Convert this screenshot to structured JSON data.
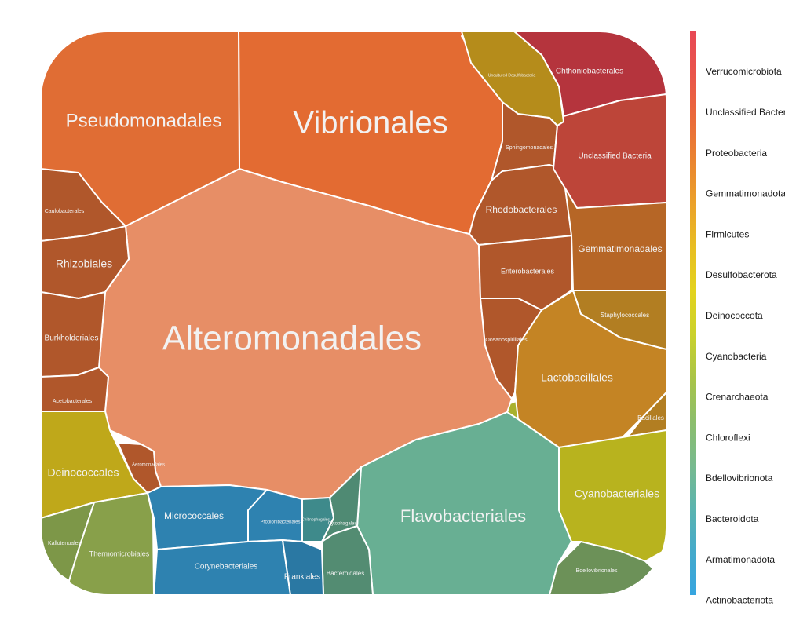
{
  "chart_data": {
    "type": "voronoi-treemap",
    "legend": {
      "placement": "right",
      "entries": [
        {
          "name": "Verrucomicrobiota",
          "color": "#E84855"
        },
        {
          "name": "Unclassified Bacteria",
          "color": "#E9554A"
        },
        {
          "name": "Proteobacteria",
          "color": "#EA6A3A"
        },
        {
          "name": "Gemmatimonadota",
          "color": "#EA8530"
        },
        {
          "name": "Firmicutes",
          "color": "#EBA22A"
        },
        {
          "name": "Desulfobacterota",
          "color": "#E8BE22"
        },
        {
          "name": "Deinococcota",
          "color": "#E3D31E"
        },
        {
          "name": "Cyanobacteria",
          "color": "#CAD12C"
        },
        {
          "name": "Crenarchaeota",
          "color": "#A9C447"
        },
        {
          "name": "Chloroflexi",
          "color": "#8CBE6C"
        },
        {
          "name": "Bdellovibrionota",
          "color": "#78BA8E"
        },
        {
          "name": "Bacteroidota",
          "color": "#5BB4AE"
        },
        {
          "name": "Armatimonadota",
          "color": "#45AACB"
        },
        {
          "name": "Actinobacteriota",
          "color": "#36A5E0"
        }
      ]
    },
    "cells": [
      {
        "label": "Alteromonadales",
        "phylum": "Proteobacteria",
        "color": "#E78E66"
      },
      {
        "label": "Vibrionales",
        "phylum": "Proteobacteria",
        "color": "#E36B32"
      },
      {
        "label": "Pseudomonadales",
        "phylum": "Proteobacteria",
        "color": "#E06D34"
      },
      {
        "label": "Caulobacterales",
        "phylum": "Proteobacteria",
        "color": "#B0572B"
      },
      {
        "label": "Rhizobiales",
        "phylum": "Proteobacteria",
        "color": "#B0572B"
      },
      {
        "label": "Burkholderiales",
        "phylum": "Proteobacteria",
        "color": "#B0572B"
      },
      {
        "label": "Acetobacterales",
        "phylum": "Proteobacteria",
        "color": "#B0572B"
      },
      {
        "label": "Aeromonadales",
        "phylum": "Proteobacteria",
        "color": "#B0572B"
      },
      {
        "label": "Sphingomonadales",
        "phylum": "Proteobacteria",
        "color": "#B0572B"
      },
      {
        "label": "Rhodobacterales",
        "phylum": "Proteobacteria",
        "color": "#B0572B"
      },
      {
        "label": "Enterobacterales",
        "phylum": "Proteobacteria",
        "color": "#B0572B"
      },
      {
        "label": "Oceanospirillales",
        "phylum": "Proteobacteria",
        "color": "#B0572B"
      },
      {
        "label": "Chthoniobacterales",
        "phylum": "Verrucomicrobiota",
        "color": "#B5343D"
      },
      {
        "label": "Unclassified Bacteria",
        "phylum": "Unclassified Bacteria",
        "color": "#BD4539"
      },
      {
        "label": "Uncultured Desulfobacteria",
        "phylum": "Desulfobacterota",
        "color": "#B58C1B"
      },
      {
        "label": "Gemmatimonadales",
        "phylum": "Gemmatimonadota",
        "color": "#B66626"
      },
      {
        "label": "Staphylococcales",
        "phylum": "Firmicutes",
        "color": "#B27E22"
      },
      {
        "label": "Lactobacillales",
        "phylum": "Firmicutes",
        "color": "#C48424"
      },
      {
        "label": "Bacillales",
        "phylum": "Firmicutes",
        "color": "#B27E22"
      },
      {
        "label": "Cyanobacteriales",
        "phylum": "Cyanobacteria",
        "color": "#B8B31E"
      },
      {
        "label": "Bdellovibrionales",
        "phylum": "Bdellovibrionota",
        "color": "#6C9158"
      },
      {
        "label": "Flavobacteriales",
        "phylum": "Bacteroidota",
        "color": "#68AF93"
      },
      {
        "label": "Cytophagales",
        "phylum": "Bacteroidota",
        "color": "#4F8A73"
      },
      {
        "label": "Bacteroidales",
        "phylum": "Bacteroidota",
        "color": "#538C72"
      },
      {
        "label": "Chitinophagales",
        "phylum": "Bacteroidota",
        "color": "#3E8A8B"
      },
      {
        "label": "Micrococcales",
        "phylum": "Actinobacteriota",
        "color": "#2E82B0"
      },
      {
        "label": "Propionibacteriales",
        "phylum": "Actinobacteriota",
        "color": "#2E82B0"
      },
      {
        "label": "Corynebacteriales",
        "phylum": "Actinobacteriota",
        "color": "#2E82B0"
      },
      {
        "label": "Frankiales",
        "phylum": "Actinobacteriota",
        "color": "#2A78A3"
      },
      {
        "label": "Deinococcales",
        "phylum": "Deinococcota",
        "color": "#BFA81A"
      },
      {
        "label": "Kallotenuales",
        "phylum": "Chloroflexi",
        "color": "#7D9748"
      },
      {
        "label": "Thermomicrobiales",
        "phylum": "Chloroflexi",
        "color": "#88A04A"
      }
    ]
  }
}
